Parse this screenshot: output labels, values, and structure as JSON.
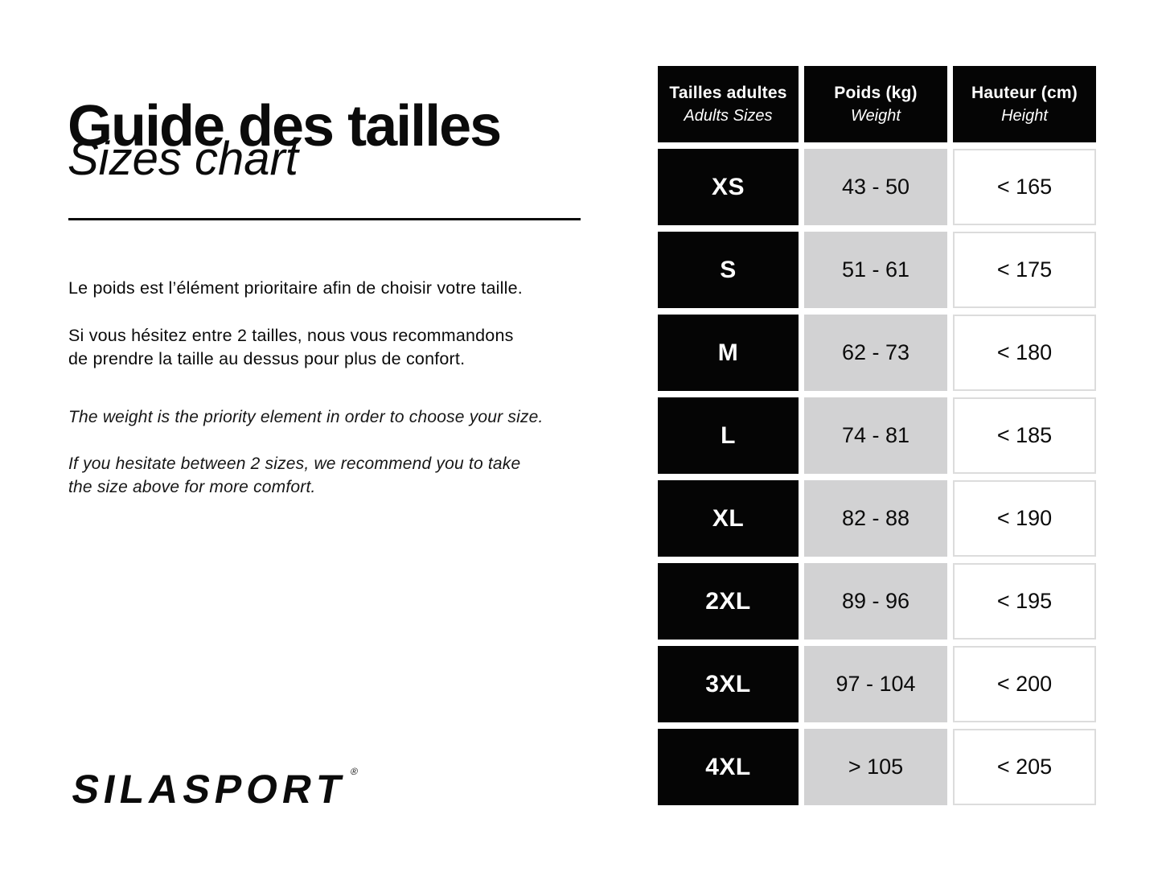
{
  "header": {
    "title_fr": "Guide des tailles",
    "title_en": "Sizes chart"
  },
  "intro": {
    "fr": [
      "Le poids est l’élément prioritaire afin de choisir votre taille.",
      "Si vous hésitez entre 2 tailles, nous vous recommandons\nde prendre la taille au dessus pour plus de confort."
    ],
    "en": [
      "The weight is the priority element in order to choose your size.",
      "If you hesitate between 2 sizes, we recommend you to take\nthe size above for more comfort."
    ]
  },
  "brand": {
    "name": "SILASPORT",
    "reg": "®"
  },
  "colors": {
    "black": "#050505",
    "cell_gray": "#d2d2d3",
    "cell_border": "#dcdcdc",
    "background": "#ffffff"
  },
  "chart_data": {
    "type": "table",
    "title": "Guide des tailles / Sizes chart",
    "columns": [
      {
        "id": "sizes",
        "fr": "Tailles adultes",
        "en": "Adults Sizes"
      },
      {
        "id": "weight",
        "fr": "Poids (kg)",
        "en": "Weight"
      },
      {
        "id": "height",
        "fr": "Hauteur (cm)",
        "en": "Height"
      }
    ],
    "rows": [
      {
        "size": "XS",
        "weight": "43 - 50",
        "height": "< 165"
      },
      {
        "size": "S",
        "weight": "51 - 61",
        "height": "< 175"
      },
      {
        "size": "M",
        "weight": "62 - 73",
        "height": "< 180"
      },
      {
        "size": "L",
        "weight": "74 - 81",
        "height": "< 185"
      },
      {
        "size": "XL",
        "weight": "82 - 88",
        "height": "< 190"
      },
      {
        "size": "2XL",
        "weight": "89 - 96",
        "height": "< 195"
      },
      {
        "size": "3XL",
        "weight": "97 - 104",
        "height": "< 200"
      },
      {
        "size": "4XL",
        "weight": "> 105",
        "height": "< 205"
      }
    ]
  }
}
